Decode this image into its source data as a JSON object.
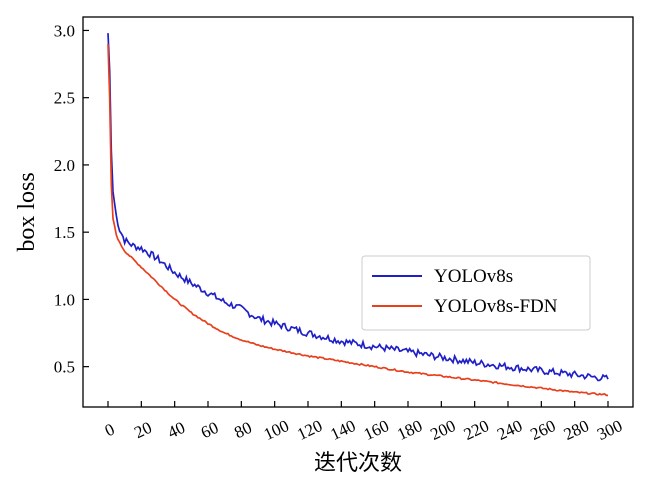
{
  "chart_data": {
    "type": "line",
    "title": "",
    "xlabel": "迭代次数",
    "ylabel": "box loss",
    "xlim": [
      -15,
      315
    ],
    "ylim": [
      0.2,
      3.1
    ],
    "grid": false,
    "legend_position": "center-right",
    "x_ticks": [
      0,
      20,
      40,
      60,
      80,
      100,
      120,
      140,
      160,
      180,
      200,
      220,
      240,
      260,
      280,
      300
    ],
    "x_tick_labels": [
      "0",
      "20",
      "40",
      "60",
      "80",
      "100",
      "120",
      "140",
      "160",
      "180",
      "200",
      "220",
      "240",
      "260",
      "280",
      "300"
    ],
    "y_ticks": [
      0.5,
      1.0,
      1.5,
      2.0,
      2.5,
      3.0
    ],
    "y_tick_labels": [
      "0.5",
      "1.0",
      "1.5",
      "2.0",
      "2.5",
      "3.0"
    ],
    "x": [
      0,
      1,
      2,
      3,
      5,
      7,
      10,
      15,
      20,
      30,
      40,
      50,
      60,
      70,
      80,
      90,
      100,
      120,
      140,
      160,
      180,
      200,
      220,
      240,
      260,
      280,
      300
    ],
    "series": [
      {
        "name": "YOLOv8s",
        "color": "#1f1fc8",
        "values": [
          2.98,
          2.7,
          2.1,
          1.8,
          1.62,
          1.52,
          1.44,
          1.4,
          1.38,
          1.3,
          1.2,
          1.12,
          1.05,
          0.98,
          0.93,
          0.86,
          0.82,
          0.75,
          0.69,
          0.65,
          0.61,
          0.57,
          0.53,
          0.5,
          0.47,
          0.44,
          0.41
        ]
      },
      {
        "name": "YOLOv8s-FDN",
        "color": "#e8401c",
        "values": [
          2.9,
          2.5,
          1.85,
          1.6,
          1.48,
          1.42,
          1.36,
          1.3,
          1.24,
          1.12,
          1.0,
          0.9,
          0.82,
          0.75,
          0.7,
          0.66,
          0.63,
          0.58,
          0.54,
          0.5,
          0.46,
          0.43,
          0.4,
          0.37,
          0.34,
          0.31,
          0.29
        ]
      }
    ]
  }
}
